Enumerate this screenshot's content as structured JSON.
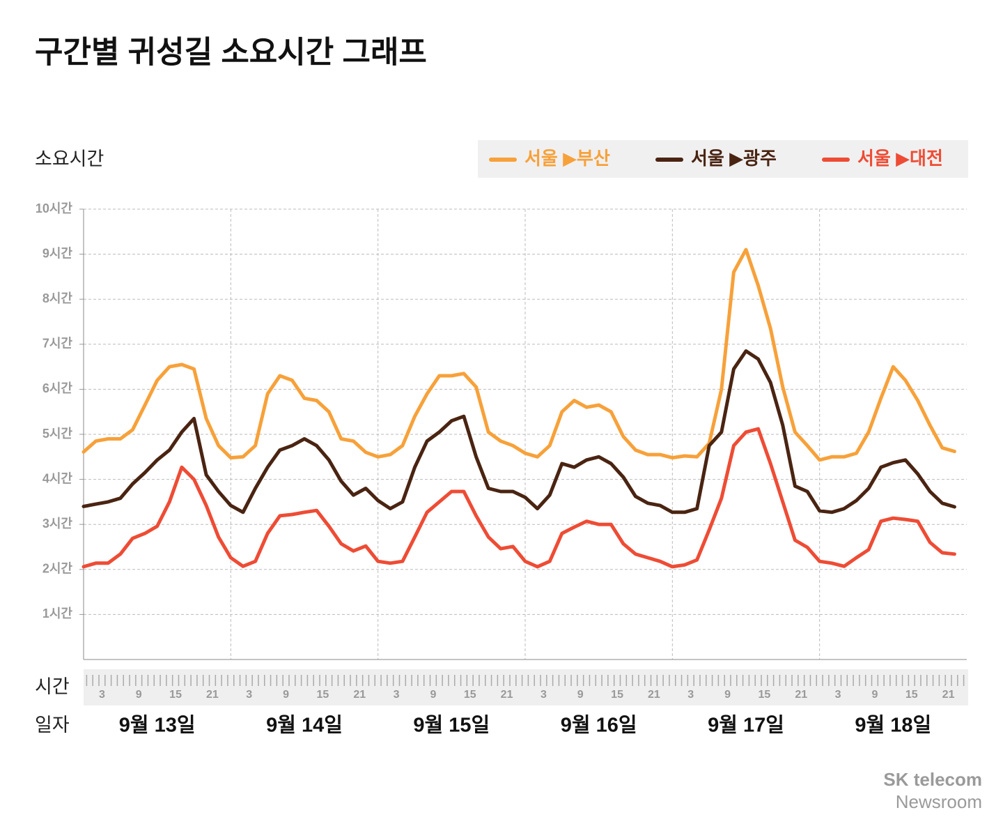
{
  "chart_data": {
    "type": "line",
    "title": "구간별 귀성길 소요시간 그래프",
    "y_label": "소요시간",
    "x_label": "시간",
    "day_axis_label": "일자",
    "x": [
      0,
      2,
      4,
      6,
      8,
      10,
      12,
      14,
      16,
      18,
      20,
      22,
      24,
      26,
      28,
      30,
      32,
      34,
      36,
      38,
      40,
      42,
      44,
      46,
      48,
      50,
      52,
      54,
      56,
      58,
      60,
      62,
      64,
      66,
      68,
      70,
      72,
      74,
      76,
      78,
      80,
      82,
      84,
      86,
      88,
      90,
      92,
      94,
      96,
      98,
      100,
      102,
      104,
      106,
      108,
      110,
      112,
      114,
      116,
      118,
      120,
      122,
      124,
      126,
      128,
      130,
      132,
      134,
      136,
      138,
      140,
      142
    ],
    "xlim": [
      0,
      144
    ],
    "xticks": [
      3,
      9,
      15,
      21,
      {
        "value": 27,
        "label": "3"
      },
      {
        "value": 33,
        "label": "9"
      },
      {
        "value": 39,
        "label": "15"
      },
      {
        "value": 45,
        "label": "21"
      },
      {
        "value": 51,
        "label": "3"
      },
      {
        "value": 57,
        "label": "9"
      },
      {
        "value": 63,
        "label": "15"
      },
      {
        "value": 69,
        "label": "21"
      },
      {
        "value": 75,
        "label": "3"
      },
      {
        "value": 81,
        "label": "9"
      },
      {
        "value": 87,
        "label": "15"
      },
      {
        "value": 93,
        "label": "21"
      },
      {
        "value": 99,
        "label": "3"
      },
      {
        "value": 105,
        "label": "9"
      },
      {
        "value": 111,
        "label": "15"
      },
      {
        "value": 117,
        "label": "21"
      },
      {
        "value": 123,
        "label": "3"
      },
      {
        "value": 129,
        "label": "9"
      },
      {
        "value": 135,
        "label": "15"
      },
      {
        "value": 141,
        "label": "21"
      }
    ],
    "day_labels": [
      {
        "value": 12,
        "label": "9월 13일"
      },
      {
        "value": 36,
        "label": "9월 14일"
      },
      {
        "value": 60,
        "label": "9월 15일"
      },
      {
        "value": 84,
        "label": "9월 16일"
      },
      {
        "value": 108,
        "label": "9월 17일"
      },
      {
        "value": 132,
        "label": "9월 18일"
      }
    ],
    "ylim": [
      0,
      10
    ],
    "yticks": [
      {
        "value": 1,
        "label": "1시간"
      },
      {
        "value": 2,
        "label": "2시간"
      },
      {
        "value": 3,
        "label": "3시간"
      },
      {
        "value": 4,
        "label": "4시간"
      },
      {
        "value": 5,
        "label": "5시간"
      },
      {
        "value": 6,
        "label": "6시간"
      },
      {
        "value": 7,
        "label": "7시간"
      },
      {
        "value": 8,
        "label": "8시간"
      },
      {
        "value": 9,
        "label": "9시간"
      },
      {
        "value": 10,
        "label": "10시간"
      }
    ],
    "grid": true,
    "legend": "top-right",
    "series": [
      {
        "name": "서울 ▶부산",
        "color": "#f7a13a",
        "values": [
          4.61,
          4.85,
          4.9,
          4.9,
          5.1,
          5.65,
          6.2,
          6.5,
          6.55,
          6.45,
          5.35,
          4.75,
          4.48,
          4.5,
          4.75,
          5.9,
          6.3,
          6.2,
          5.8,
          5.75,
          5.5,
          4.9,
          4.85,
          4.6,
          4.5,
          4.55,
          4.75,
          5.4,
          5.9,
          6.3,
          6.3,
          6.35,
          6.05,
          5.05,
          4.85,
          4.75,
          4.58,
          4.5,
          4.75,
          5.5,
          5.75,
          5.6,
          5.65,
          5.5,
          4.95,
          4.65,
          4.55,
          4.55,
          4.48,
          4.52,
          4.5,
          4.8,
          6.0,
          8.6,
          9.1,
          8.3,
          7.35,
          6.05,
          5.05,
          4.75,
          4.43,
          4.5,
          4.5,
          4.58,
          5.05,
          5.8,
          6.5,
          6.2,
          5.75,
          5.2,
          4.7,
          4.62
        ]
      },
      {
        "name": "서울 ▶광주",
        "color": "#4a2412",
        "values": [
          3.4,
          3.45,
          3.5,
          3.58,
          3.9,
          4.15,
          4.43,
          4.65,
          5.05,
          5.35,
          4.1,
          3.73,
          3.42,
          3.27,
          3.8,
          4.27,
          4.65,
          4.75,
          4.9,
          4.75,
          4.43,
          3.96,
          3.65,
          3.8,
          3.53,
          3.35,
          3.5,
          4.27,
          4.85,
          5.05,
          5.3,
          5.4,
          4.5,
          3.8,
          3.73,
          3.73,
          3.6,
          3.35,
          3.65,
          4.35,
          4.27,
          4.43,
          4.5,
          4.35,
          4.05,
          3.62,
          3.47,
          3.42,
          3.27,
          3.27,
          3.35,
          4.75,
          5.05,
          6.45,
          6.85,
          6.67,
          6.15,
          5.2,
          3.85,
          3.73,
          3.3,
          3.27,
          3.35,
          3.53,
          3.8,
          4.27,
          4.37,
          4.43,
          4.12,
          3.73,
          3.47,
          3.39
        ]
      },
      {
        "name": "서울 ▶대전",
        "color": "#ee4c35",
        "values": [
          2.06,
          2.14,
          2.14,
          2.34,
          2.69,
          2.8,
          2.96,
          3.5,
          4.27,
          4.0,
          3.42,
          2.72,
          2.26,
          2.07,
          2.18,
          2.8,
          3.19,
          3.22,
          3.27,
          3.31,
          2.96,
          2.57,
          2.41,
          2.52,
          2.18,
          2.14,
          2.18,
          2.72,
          3.27,
          3.5,
          3.73,
          3.73,
          3.19,
          2.72,
          2.46,
          2.51,
          2.18,
          2.06,
          2.18,
          2.8,
          2.94,
          3.07,
          3.0,
          3.0,
          2.57,
          2.34,
          2.26,
          2.18,
          2.06,
          2.1,
          2.21,
          2.88,
          3.58,
          4.75,
          5.05,
          5.12,
          4.35,
          3.5,
          2.65,
          2.49,
          2.18,
          2.14,
          2.07,
          2.26,
          2.44,
          3.07,
          3.14,
          3.11,
          3.07,
          2.6,
          2.37,
          2.34
        ]
      }
    ]
  },
  "watermark": {
    "brand": "SK telecom",
    "site": "Newsroom"
  }
}
